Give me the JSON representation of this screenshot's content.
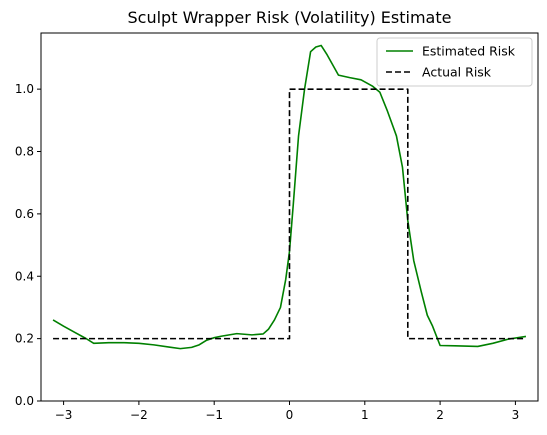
{
  "chart_data": {
    "type": "line",
    "title": "Sculpt Wrapper Risk (Volatility) Estimate",
    "xlabel": "",
    "ylabel": "",
    "xlim": [
      -3.3,
      3.3
    ],
    "ylim": [
      0.0,
      1.18
    ],
    "xticks": [
      -3,
      -2,
      -1,
      0,
      1,
      2,
      3
    ],
    "xtick_labels": [
      "−3",
      "−2",
      "−1",
      "0",
      "1",
      "2",
      "3"
    ],
    "yticks": [
      0.0,
      0.2,
      0.4,
      0.6,
      0.8,
      1.0
    ],
    "ytick_labels": [
      "0.0",
      "0.2",
      "0.4",
      "0.6",
      "0.8",
      "1.0"
    ],
    "grid": false,
    "legend_position": "top-right",
    "series": [
      {
        "name": "Estimated Risk",
        "color": "#008000",
        "style": "solid",
        "x": [
          -3.14,
          -3.0,
          -2.85,
          -2.7,
          -2.6,
          -2.4,
          -2.2,
          -2.0,
          -1.8,
          -1.6,
          -1.45,
          -1.3,
          -1.2,
          -1.1,
          -1.0,
          -0.9,
          -0.7,
          -0.5,
          -0.35,
          -0.28,
          -0.2,
          -0.12,
          -0.05,
          0.0,
          0.05,
          0.12,
          0.2,
          0.28,
          0.35,
          0.42,
          0.5,
          0.65,
          0.8,
          0.95,
          1.1,
          1.2,
          1.3,
          1.42,
          1.5,
          1.57,
          1.65,
          1.75,
          1.83,
          1.9,
          2.0,
          2.2,
          2.5,
          2.7,
          2.9,
          3.14
        ],
        "y": [
          0.26,
          0.24,
          0.22,
          0.2,
          0.185,
          0.187,
          0.187,
          0.185,
          0.18,
          0.173,
          0.168,
          0.172,
          0.18,
          0.195,
          0.203,
          0.208,
          0.216,
          0.212,
          0.215,
          0.23,
          0.26,
          0.3,
          0.39,
          0.48,
          0.63,
          0.85,
          1.0,
          1.12,
          1.135,
          1.14,
          1.11,
          1.045,
          1.037,
          1.03,
          1.01,
          0.99,
          0.93,
          0.85,
          0.75,
          0.58,
          0.45,
          0.35,
          0.275,
          0.24,
          0.178,
          0.177,
          0.175,
          0.185,
          0.198,
          0.207
        ]
      },
      {
        "name": "Actual Risk",
        "color": "#000000",
        "style": "dashed",
        "x": [
          -3.14,
          0.0,
          0.0,
          1.5708,
          1.5708,
          3.14
        ],
        "y": [
          0.2,
          0.2,
          1.0,
          1.0,
          0.2,
          0.2
        ]
      }
    ]
  }
}
